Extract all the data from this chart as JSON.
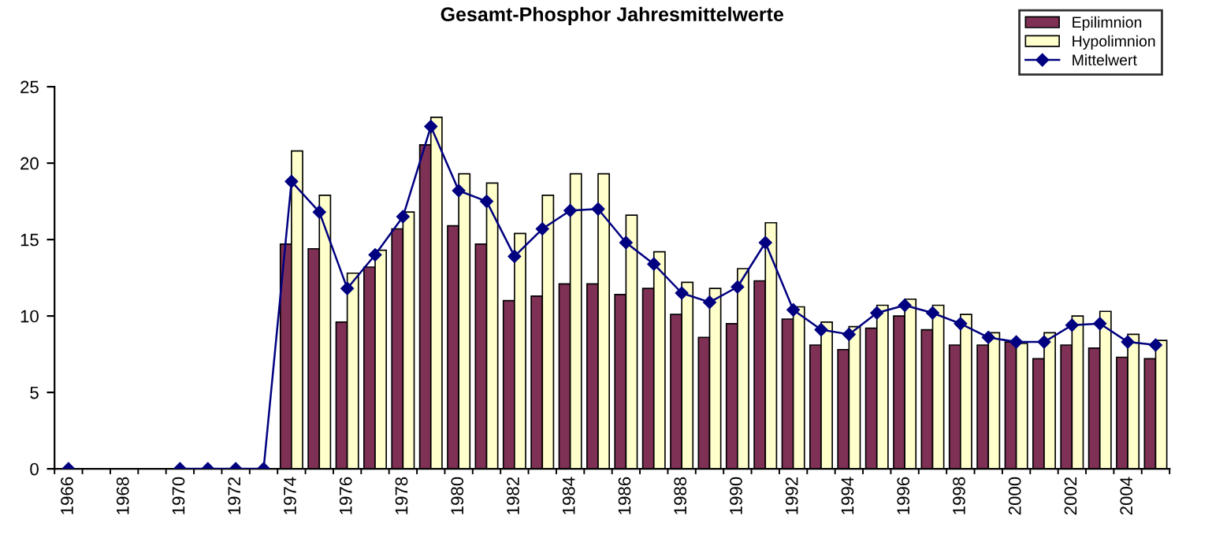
{
  "chart_data": {
    "type": "bar",
    "title": "Gesamt-Phosphor Jahresmittelwerte",
    "categories": [
      "1966",
      null,
      "1968",
      null,
      "1970",
      null,
      "1972",
      null,
      "1974",
      null,
      "1976",
      null,
      "1978",
      null,
      "1980",
      null,
      "1982",
      null,
      "1984",
      null,
      "1986",
      null,
      "1988",
      null,
      "1990",
      null,
      "1992",
      null,
      "1994",
      null,
      "1996",
      null,
      "1998",
      null,
      "2000",
      null,
      "2002",
      null,
      "2004",
      null
    ],
    "series": [
      {
        "name": "Epilimnion",
        "color": "#7f3055",
        "values": [
          null,
          null,
          null,
          null,
          null,
          null,
          null,
          null,
          14.7,
          14.4,
          9.6,
          13.2,
          15.7,
          21.2,
          15.9,
          14.7,
          11.0,
          11.3,
          12.1,
          12.1,
          11.4,
          11.8,
          10.1,
          8.6,
          9.5,
          12.3,
          9.8,
          8.1,
          7.8,
          9.2,
          10.0,
          9.1,
          8.1,
          8.1,
          8.3,
          7.2,
          8.1,
          7.9,
          7.3,
          7.2
        ]
      },
      {
        "name": "Hypolimnion",
        "color": "#ffffcc",
        "values": [
          null,
          null,
          null,
          null,
          null,
          null,
          null,
          null,
          20.8,
          17.9,
          12.8,
          14.3,
          16.8,
          23.0,
          19.3,
          18.7,
          15.4,
          17.9,
          19.3,
          19.3,
          16.6,
          14.2,
          12.2,
          11.8,
          13.1,
          16.1,
          10.6,
          9.6,
          9.3,
          10.7,
          11.1,
          10.7,
          10.1,
          8.9,
          8.2,
          8.9,
          10.0,
          10.3,
          8.8,
          8.4
        ]
      },
      {
        "name": "Mittelwert",
        "type": "line",
        "color": "#000080",
        "values": [
          0,
          null,
          null,
          null,
          0,
          0,
          0,
          0,
          18.8,
          16.8,
          11.8,
          14.0,
          16.5,
          22.4,
          18.2,
          17.5,
          13.9,
          15.7,
          16.9,
          17.0,
          14.8,
          13.4,
          11.5,
          10.9,
          11.9,
          14.8,
          10.4,
          9.1,
          8.8,
          10.2,
          10.7,
          10.2,
          9.5,
          8.6,
          8.3,
          8.3,
          9.4,
          9.5,
          8.3,
          8.1
        ]
      }
    ],
    "ylim": [
      0,
      25
    ],
    "yticks": [
      0,
      5,
      10,
      15,
      20,
      25
    ],
    "grid": false,
    "legend": "top right",
    "marker": "diamond",
    "line_style": "solid"
  }
}
